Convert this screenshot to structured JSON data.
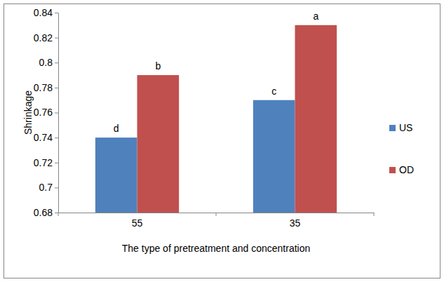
{
  "chart_data": {
    "type": "bar",
    "x_label": "The type of pretreatment and concentration",
    "y_label": "Shrinkage",
    "categories": [
      "55",
      "35"
    ],
    "series": [
      {
        "name": "US",
        "color": "#4f81bd",
        "values": [
          0.74,
          0.77
        ],
        "annotations": [
          "d",
          "c"
        ]
      },
      {
        "name": "OD",
        "color": "#c0504d",
        "values": [
          0.79,
          0.83
        ],
        "annotations": [
          "b",
          "a"
        ]
      }
    ],
    "ylim": [
      0.68,
      0.84
    ],
    "yticks": [
      0.68,
      0.7,
      0.72,
      0.74,
      0.76,
      0.78,
      0.8,
      0.82,
      0.84
    ],
    "grid": false,
    "legend": "right"
  }
}
